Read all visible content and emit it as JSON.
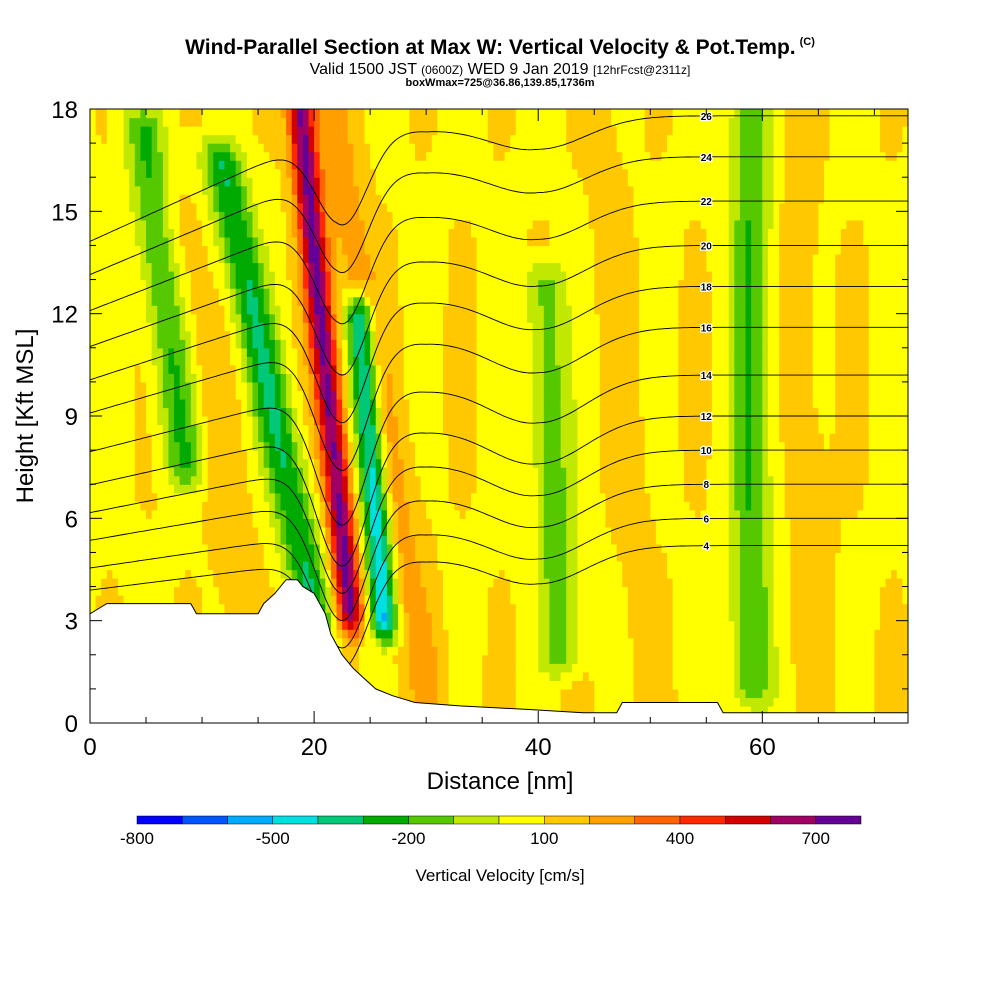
{
  "title": "Wind-Parallel Section at Max W: Vertical Velocity & Pot.Temp.",
  "title_mark": "(C)",
  "subtitle_main": "Valid 1500 JST",
  "subtitle_z": "(0600Z)",
  "subtitle_date": "WED 9 Jan 2019",
  "subtitle_fcst": "[12hrFcst@2311z]",
  "subtitle2": "boxWmax=725@36.86,139.85,1736m",
  "chart_data": {
    "type": "heatmap",
    "title": "Wind-Parallel Section at Max W: Vertical Velocity & Pot.Temp.",
    "xlabel": "Distance [nm]",
    "ylabel": "Height [Kft MSL]",
    "xlim": [
      0,
      73
    ],
    "ylim": [
      0,
      18
    ],
    "x_ticks": [
      0,
      20,
      40,
      60
    ],
    "y_ticks": [
      0,
      3,
      6,
      9,
      12,
      15,
      18
    ],
    "colorbar": {
      "label": "Vertical Velocity [cm/s]",
      "tick_labels": [
        "-800",
        "-500",
        "-200",
        "100",
        "400",
        "700"
      ],
      "tick_values": [
        -800,
        -500,
        -200,
        100,
        400,
        700
      ],
      "range": [
        -800,
        800
      ],
      "colors": [
        "#0000ff",
        "#0055ff",
        "#00aaff",
        "#00e0e0",
        "#00c878",
        "#00aa00",
        "#55c800",
        "#c0e800",
        "#ffff00",
        "#ffc800",
        "#ffa000",
        "#ff6400",
        "#ff2800",
        "#d20000",
        "#a00064",
        "#640096"
      ]
    },
    "velocity_features": [
      {
        "x": 23.2,
        "ymin": 3.2,
        "ymax": 18,
        "value": 725,
        "tilt": -0.12
      },
      {
        "x": 20.2,
        "ymin": 3.0,
        "ymax": 16.5,
        "value": -300,
        "tilt": -0.25
      },
      {
        "x": 26.3,
        "ymin": 3.0,
        "ymax": 12.0,
        "value": -500,
        "tilt": -0.1
      },
      {
        "x": 8.5,
        "ymin": 7.5,
        "ymax": 17.5,
        "value": -200,
        "tilt": -0.15
      },
      {
        "x": 30.0,
        "ymin": 1.0,
        "ymax": 18,
        "value": 250,
        "tilt": -0.2
      },
      {
        "x": 42.0,
        "ymin": 2.0,
        "ymax": 13.0,
        "value": -150,
        "tilt": -0.05
      },
      {
        "x": 59.0,
        "ymin": 1.0,
        "ymax": 18,
        "value": -200,
        "tilt": 0.0
      },
      {
        "x": 50.0,
        "ymin": 0.3,
        "ymax": 18,
        "value": 130,
        "tilt": -0.1
      },
      {
        "x": 65.0,
        "ymin": 0.3,
        "ymax": 18,
        "value": 150,
        "tilt": -0.05
      },
      {
        "x": 14.0,
        "ymin": 3.0,
        "ymax": 15.0,
        "value": 180,
        "tilt": -0.2
      }
    ],
    "theta_contours": [
      {
        "label": "4",
        "h0": 4.8,
        "dip": 3.2
      },
      {
        "label": "6",
        "h0": 5.6,
        "dip": 3.4
      },
      {
        "label": "8",
        "h0": 6.6,
        "dip": 3.6
      },
      {
        "label": "10",
        "h0": 7.6,
        "dip": 3.8
      },
      {
        "label": "12",
        "h0": 8.6,
        "dip": 4.0
      },
      {
        "label": "14",
        "h0": 9.8,
        "dip": 4.0
      },
      {
        "label": "16",
        "h0": 11.2,
        "dip": 3.8
      },
      {
        "label": "18",
        "h0": 12.4,
        "dip": 3.6
      },
      {
        "label": "20",
        "h0": 13.6,
        "dip": 3.4
      },
      {
        "label": "22",
        "h0": 14.9,
        "dip": 3.2
      },
      {
        "label": "24",
        "h0": 16.2,
        "dip": 3.0
      },
      {
        "label": "26",
        "h0": 17.4,
        "dip": 2.8
      }
    ],
    "terrain": [
      [
        0,
        3.2
      ],
      [
        1,
        3.4
      ],
      [
        1.5,
        3.5
      ],
      [
        4,
        3.5
      ],
      [
        8,
        3.5
      ],
      [
        9,
        3.5
      ],
      [
        9.5,
        3.2
      ],
      [
        13,
        3.2
      ],
      [
        15,
        3.2
      ],
      [
        15.5,
        3.5
      ],
      [
        16.5,
        3.8
      ],
      [
        17.5,
        4.2
      ],
      [
        18.5,
        4.2
      ],
      [
        19,
        4.0
      ],
      [
        20,
        3.8
      ],
      [
        21,
        3.2
      ],
      [
        21.5,
        2.6
      ],
      [
        22.5,
        2.0
      ],
      [
        23.5,
        1.6
      ],
      [
        24.5,
        1.3
      ],
      [
        25.5,
        1.0
      ],
      [
        27,
        0.8
      ],
      [
        29,
        0.6
      ],
      [
        33,
        0.5
      ],
      [
        39,
        0.4
      ],
      [
        44,
        0.3
      ],
      [
        44.5,
        0.3
      ],
      [
        47,
        0.3
      ],
      [
        47.5,
        0.6
      ],
      [
        50,
        0.6
      ],
      [
        56,
        0.6
      ],
      [
        56.5,
        0.3
      ],
      [
        73,
        0.3
      ]
    ]
  }
}
